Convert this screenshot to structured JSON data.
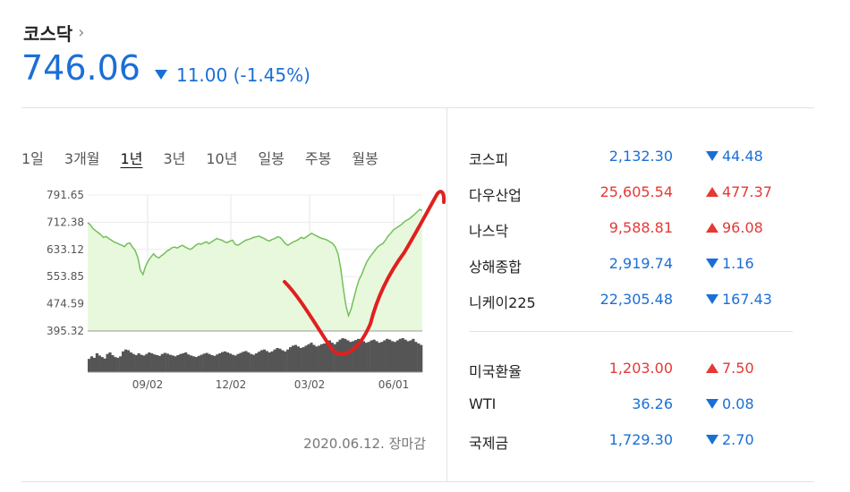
{
  "index": {
    "name": "코스닥",
    "chevron": "›",
    "price": "746.06",
    "change": "11.00 (-1.45%)",
    "direction": "down"
  },
  "periods": [
    "1일",
    "3개월",
    "1년",
    "3년",
    "10년",
    "일봉",
    "주봉",
    "월봉"
  ],
  "active_period": "1년",
  "chart_data": {
    "type": "area",
    "y_ticks": [
      "791.65",
      "712.38",
      "633.12",
      "553.85",
      "474.59",
      "395.32"
    ],
    "ylim": [
      395.32,
      791.65
    ],
    "x_ticks": [
      "09/02",
      "12/02",
      "03/02",
      "06/01"
    ],
    "series": [
      {
        "values": [
          711,
          705,
          694,
          688,
          682,
          676,
          668,
          671,
          665,
          660,
          655,
          652,
          648,
          645,
          641,
          650,
          652,
          640,
          630,
          610,
          572,
          560,
          585,
          600,
          611,
          620,
          612,
          608,
          615,
          620,
          628,
          632,
          638,
          640,
          637,
          642,
          645,
          640,
          636,
          633,
          638,
          645,
          650,
          648,
          652,
          655,
          650,
          655,
          660,
          665,
          662,
          660,
          655,
          653,
          657,
          660,
          648,
          645,
          650,
          655,
          660,
          662,
          665,
          668,
          670,
          672,
          668,
          665,
          660,
          658,
          662,
          665,
          670,
          668,
          660,
          650,
          645,
          650,
          655,
          658,
          662,
          668,
          665,
          670,
          675,
          680,
          676,
          672,
          668,
          665,
          663,
          660,
          655,
          650,
          640,
          620,
          580,
          520,
          470,
          440,
          460,
          490,
          520,
          545,
          560,
          580,
          598,
          610,
          620,
          630,
          640,
          646,
          650,
          660,
          672,
          680,
          690,
          695,
          700,
          705,
          712,
          718,
          722,
          728,
          735,
          742,
          750,
          746
        ]
      }
    ],
    "volume": [
      35,
      42,
      38,
      50,
      44,
      40,
      36,
      48,
      52,
      45,
      40,
      38,
      42,
      55,
      60,
      58,
      52,
      48,
      45,
      50,
      46,
      44,
      48,
      52,
      50,
      47,
      45,
      43,
      48,
      51,
      49,
      46,
      44,
      42,
      45,
      48,
      50,
      52,
      47,
      44,
      42,
      40,
      43,
      46,
      49,
      51,
      48,
      45,
      43,
      47,
      50,
      53,
      55,
      52,
      49,
      46,
      44,
      48,
      51,
      54,
      56,
      52,
      48,
      46,
      50,
      54,
      58,
      60,
      56,
      52,
      55,
      60,
      64,
      62,
      58,
      55,
      60,
      66,
      70,
      72,
      68,
      64,
      66,
      70,
      74,
      78,
      72,
      68,
      70,
      74,
      76,
      80,
      84,
      78,
      74,
      80,
      86,
      90,
      88,
      84,
      80,
      82,
      85,
      88,
      86,
      82,
      78,
      80,
      84,
      86,
      82,
      78,
      80,
      84,
      88,
      86,
      82,
      80,
      84,
      88,
      90,
      86,
      82,
      84,
      88,
      80,
      76,
      72
    ]
  },
  "date_note": "2020.06.12. 장마감",
  "markets": [
    {
      "name": "코스피",
      "value": "2,132.30",
      "change": "44.48",
      "dir": "down"
    },
    {
      "name": "다우산업",
      "value": "25,605.54",
      "change": "477.37",
      "dir": "up"
    },
    {
      "name": "나스닥",
      "value": "9,588.81",
      "change": "96.08",
      "dir": "up"
    },
    {
      "name": "상해종합",
      "value": "2,919.74",
      "change": "1.16",
      "dir": "down"
    },
    {
      "name": "니케이225",
      "value": "22,305.48",
      "change": "167.43",
      "dir": "down"
    }
  ],
  "fx": [
    {
      "name": "미국환율",
      "value": "1,203.00",
      "change": "7.50",
      "dir": "up"
    },
    {
      "name": "WTI",
      "value": "36.26",
      "change": "0.08",
      "dir": "down"
    },
    {
      "name": "국제금",
      "value": "1,729.30",
      "change": "2.70",
      "dir": "down"
    }
  ],
  "colors": {
    "up": "#e53935",
    "down": "#1a6fd6",
    "line": "#72c05a",
    "area": "#e8f8dc",
    "annotation": "#e02020"
  }
}
